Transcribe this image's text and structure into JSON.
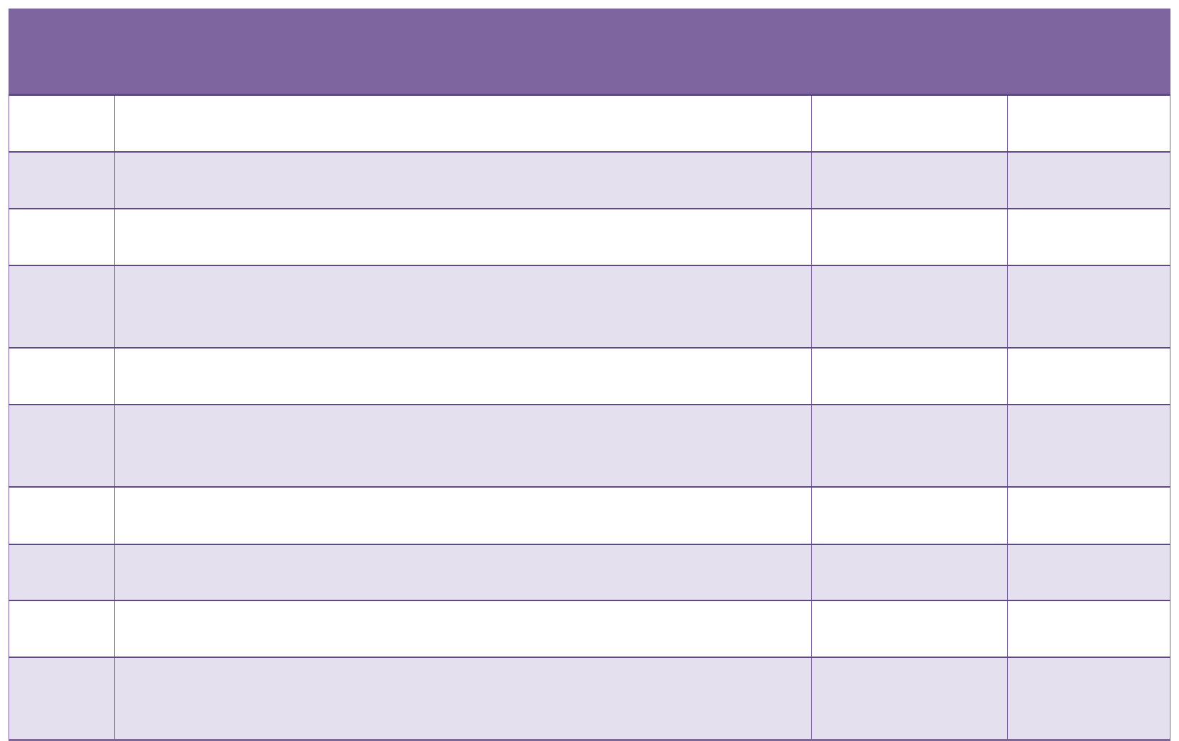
{
  "table": {
    "header_color": "#7f65a0",
    "stripe_color": "#e5e0ee",
    "border_color": "#6a4f8f",
    "header": "",
    "rows": [
      [
        "",
        "",
        "",
        ""
      ],
      [
        "",
        "",
        "",
        ""
      ],
      [
        "",
        "",
        "",
        ""
      ],
      [
        "",
        "",
        "",
        ""
      ],
      [
        "",
        "",
        "",
        ""
      ],
      [
        "",
        "",
        "",
        ""
      ],
      [
        "",
        "",
        "",
        ""
      ],
      [
        "",
        "",
        "",
        ""
      ],
      [
        "",
        "",
        "",
        ""
      ],
      [
        "",
        "",
        "",
        ""
      ]
    ]
  }
}
